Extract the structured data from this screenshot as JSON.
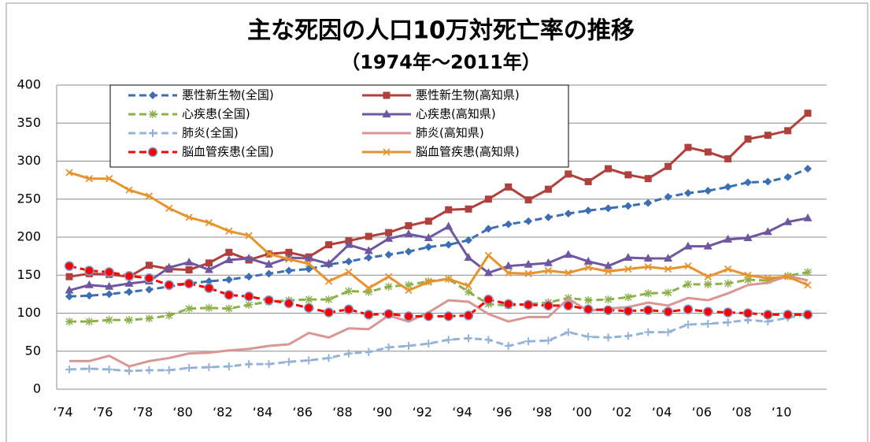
{
  "chart_data": {
    "type": "line",
    "title": "主な死因の人口10万対死亡率の推移",
    "subtitle": "（1974年～2011年）",
    "categories": [
      "‘74",
      null,
      "‘76",
      null,
      "‘78",
      null,
      "‘80",
      null,
      "‘82",
      null,
      "‘84",
      null,
      "‘86",
      null,
      "‘88",
      null,
      "‘90",
      null,
      "‘92",
      null,
      "‘94",
      null,
      "‘96",
      null,
      "‘98",
      null,
      "‘00",
      null,
      "‘02",
      null,
      "‘04",
      null,
      "‘06",
      null,
      "‘08",
      null,
      "‘10",
      null
    ],
    "ylim": [
      0,
      400
    ],
    "yticks": [
      0,
      50,
      100,
      150,
      200,
      250,
      300,
      350,
      400
    ],
    "grid": true,
    "legend": "top",
    "series": [
      {
        "name": "悪性新生物(全国)",
        "color": "#3c6eb4",
        "dash": true,
        "marker": "diamond",
        "values": [
          122,
          123,
          125,
          128,
          131,
          135,
          139,
          142,
          144,
          148,
          152,
          156,
          158,
          164,
          168,
          173,
          177,
          181,
          187,
          190,
          196,
          211,
          217,
          221,
          226,
          231,
          235,
          238,
          241,
          245,
          253,
          258,
          261,
          266,
          272,
          273,
          279,
          290
        ]
      },
      {
        "name": "悪性新生物(高知県)",
        "color": "#b0403c",
        "dash": false,
        "marker": "square",
        "values": [
          148,
          152,
          151,
          148,
          163,
          158,
          157,
          166,
          180,
          170,
          178,
          180,
          174,
          190,
          195,
          201,
          206,
          215,
          221,
          236,
          237,
          250,
          266,
          249,
          263,
          283,
          273,
          290,
          282,
          277,
          293,
          318,
          312,
          303,
          329,
          334,
          340,
          363
        ]
      },
      {
        "name": "心疾患(全国)",
        "color": "#8cb04a",
        "dash": true,
        "marker": "asterisk",
        "values": [
          89,
          89,
          91,
          91,
          93,
          97,
          106,
          107,
          106,
          111,
          115,
          117,
          118,
          118,
          129,
          128,
          135,
          137,
          142,
          145,
          128,
          112,
          110,
          112,
          114,
          120,
          117,
          118,
          121,
          126,
          127,
          138,
          138,
          139,
          144,
          143,
          149,
          154
        ]
      },
      {
        "name": "心疾患(高知県)",
        "color": "#6e57a0",
        "dash": false,
        "marker": "triangle",
        "values": [
          130,
          137,
          135,
          139,
          142,
          160,
          167,
          157,
          170,
          172,
          164,
          173,
          172,
          165,
          190,
          182,
          198,
          204,
          199,
          214,
          173,
          153,
          162,
          164,
          166,
          177,
          168,
          162,
          173,
          172,
          172,
          188,
          188,
          197,
          199,
          207,
          220,
          225
        ]
      },
      {
        "name": "肺炎(全国)",
        "color": "#95b3d7",
        "dash": true,
        "marker": "plus",
        "values": [
          26,
          27,
          26,
          24,
          25,
          25,
          28,
          29,
          30,
          33,
          33,
          36,
          38,
          41,
          47,
          49,
          55,
          57,
          60,
          65,
          67,
          65,
          57,
          63,
          64,
          75,
          69,
          68,
          70,
          75,
          75,
          85,
          86,
          88,
          91,
          89,
          94,
          99
        ]
      },
      {
        "name": "肺炎(高知県)",
        "color": "#d99694",
        "dash": false,
        "marker": "none",
        "values": [
          37,
          37,
          44,
          30,
          37,
          41,
          47,
          48,
          51,
          53,
          57,
          59,
          74,
          68,
          80,
          79,
          97,
          89,
          101,
          117,
          115,
          99,
          89,
          95,
          95,
          119,
          103,
          106,
          108,
          114,
          110,
          120,
          117,
          126,
          137,
          140,
          149,
          143
        ]
      },
      {
        "name": "脳血管疾患(全国)",
        "color": "#ff0000",
        "dash": true,
        "marker": "circle",
        "values": [
          162,
          156,
          154,
          149,
          146,
          137,
          139,
          133,
          124,
          122,
          117,
          113,
          107,
          101,
          105,
          98,
          99,
          96,
          96,
          96,
          97,
          118,
          112,
          111,
          110,
          110,
          105,
          104,
          103,
          104,
          102,
          105,
          102,
          101,
          100,
          98,
          98,
          98
        ]
      },
      {
        "name": "脳血管疾患(高知県)",
        "color": "#e8922e",
        "dash": false,
        "marker": "x",
        "values": [
          285,
          277,
          277,
          262,
          254,
          238,
          226,
          219,
          208,
          202,
          178,
          171,
          165,
          142,
          154,
          133,
          148,
          130,
          141,
          145,
          136,
          176,
          153,
          152,
          156,
          153,
          160,
          155,
          158,
          161,
          158,
          162,
          148,
          158,
          150,
          146,
          148,
          137
        ]
      }
    ]
  }
}
